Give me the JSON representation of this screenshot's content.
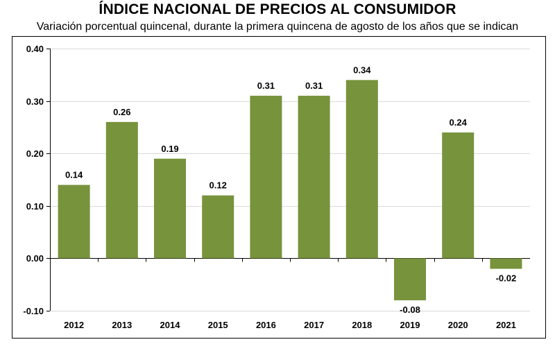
{
  "chart_data": {
    "type": "bar",
    "title": "ÍNDICE NACIONAL DE PRECIOS AL CONSUMIDOR",
    "subtitle": "Variación porcentual quincenal, durante la primera quincena de agosto de los años que se indican",
    "categories": [
      "2012",
      "2013",
      "2014",
      "2015",
      "2016",
      "2017",
      "2018",
      "2019",
      "2020",
      "2021"
    ],
    "values": [
      0.14,
      0.26,
      0.19,
      0.12,
      0.31,
      0.31,
      0.34,
      -0.08,
      0.24,
      -0.02
    ],
    "value_labels": [
      "0.14",
      "0.26",
      "0.19",
      "0.12",
      "0.31",
      "0.31",
      "0.34",
      "-0.08",
      "0.24",
      "-0.02"
    ],
    "ylim": [
      -0.1,
      0.4
    ],
    "yticks": [
      -0.1,
      0.0,
      0.1,
      0.2,
      0.3,
      0.4
    ],
    "ytick_labels": [
      "-0.10",
      "0.00",
      "0.10",
      "0.20",
      "0.30",
      "0.40"
    ],
    "grid": true,
    "bar_color": "#77933c"
  }
}
